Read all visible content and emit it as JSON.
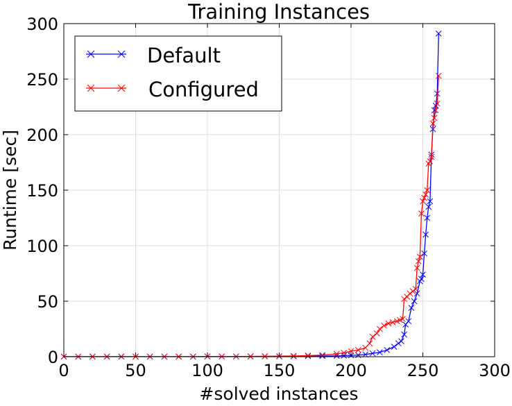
{
  "chart_data": {
    "type": "line",
    "title": "Training Instances",
    "xlabel": "#solved instances",
    "ylabel": "Runtime [sec]",
    "xlim": [
      0,
      300
    ],
    "ylim": [
      0,
      300
    ],
    "xticks": [
      0,
      50,
      100,
      150,
      200,
      250,
      300
    ],
    "yticks": [
      0,
      50,
      100,
      150,
      200,
      250,
      300
    ],
    "grid": true,
    "legend_position": "top-left",
    "marker": "x",
    "series": [
      {
        "name": "Default",
        "color": "#0000ff",
        "points": [
          [
            0,
            0.1
          ],
          [
            10,
            0.1
          ],
          [
            20,
            0.1
          ],
          [
            30,
            0.1
          ],
          [
            40,
            0.1
          ],
          [
            50,
            0.1
          ],
          [
            60,
            0.1
          ],
          [
            70,
            0.1
          ],
          [
            80,
            0.1
          ],
          [
            90,
            0.1
          ],
          [
            100,
            0.2
          ],
          [
            110,
            0.2
          ],
          [
            120,
            0.2
          ],
          [
            130,
            0.2
          ],
          [
            140,
            0.3
          ],
          [
            150,
            0.3
          ],
          [
            160,
            0.4
          ],
          [
            170,
            0.5
          ],
          [
            180,
            0.6
          ],
          [
            190,
            0.8
          ],
          [
            195,
            1
          ],
          [
            200,
            1.2
          ],
          [
            205,
            1.5
          ],
          [
            210,
            2
          ],
          [
            215,
            3
          ],
          [
            220,
            4
          ],
          [
            225,
            6
          ],
          [
            230,
            9
          ],
          [
            233,
            12
          ],
          [
            235,
            14
          ],
          [
            237,
            20
          ],
          [
            238,
            29
          ],
          [
            240,
            32
          ],
          [
            242,
            44
          ],
          [
            244,
            50
          ],
          [
            246,
            57
          ],
          [
            248,
            68
          ],
          [
            249,
            70
          ],
          [
            250,
            74
          ],
          [
            251,
            93
          ],
          [
            252,
            110
          ],
          [
            253,
            125
          ],
          [
            254,
            135
          ],
          [
            255,
            140
          ],
          [
            256,
            182
          ],
          [
            257,
            205
          ],
          [
            258,
            222
          ],
          [
            259,
            226
          ],
          [
            260,
            237
          ],
          [
            261,
            291
          ]
        ]
      },
      {
        "name": "Configured",
        "color": "#ff0000",
        "points": [
          [
            0,
            0.1
          ],
          [
            10,
            0.1
          ],
          [
            20,
            0.1
          ],
          [
            30,
            0.1
          ],
          [
            40,
            0.1
          ],
          [
            50,
            0.1
          ],
          [
            60,
            0.1
          ],
          [
            70,
            0.1
          ],
          [
            80,
            0.1
          ],
          [
            90,
            0.1
          ],
          [
            100,
            0.2
          ],
          [
            110,
            0.2
          ],
          [
            120,
            0.2
          ],
          [
            130,
            0.3
          ],
          [
            140,
            0.4
          ],
          [
            150,
            0.5
          ],
          [
            160,
            0.7
          ],
          [
            170,
            1
          ],
          [
            180,
            1.5
          ],
          [
            190,
            2.5
          ],
          [
            195,
            3.5
          ],
          [
            200,
            5
          ],
          [
            205,
            6
          ],
          [
            210,
            8
          ],
          [
            213,
            12
          ],
          [
            215,
            18
          ],
          [
            218,
            21
          ],
          [
            220,
            25
          ],
          [
            223,
            28
          ],
          [
            226,
            30
          ],
          [
            229,
            31
          ],
          [
            232,
            32
          ],
          [
            234,
            33
          ],
          [
            236,
            34
          ],
          [
            237,
            52
          ],
          [
            239,
            54
          ],
          [
            241,
            57
          ],
          [
            243,
            59
          ],
          [
            245,
            61
          ],
          [
            246,
            80
          ],
          [
            247,
            86
          ],
          [
            248,
            90
          ],
          [
            249,
            129
          ],
          [
            250,
            140
          ],
          [
            251,
            143
          ],
          [
            252,
            146
          ],
          [
            253,
            150
          ],
          [
            254,
            174
          ],
          [
            255,
            176
          ],
          [
            256,
            180
          ],
          [
            257,
            210
          ],
          [
            258,
            215
          ],
          [
            259,
            222
          ],
          [
            260,
            228
          ],
          [
            261,
            253
          ]
        ]
      }
    ]
  }
}
